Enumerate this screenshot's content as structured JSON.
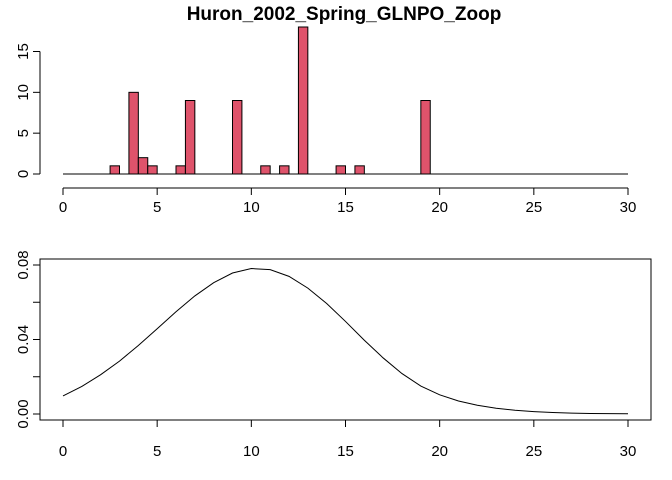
{
  "chart_data": [
    {
      "type": "bar",
      "title": "Huron_2002_Spring_GLNPO_Zoop",
      "xlabel": "",
      "ylabel": "",
      "xlim": [
        0,
        30
      ],
      "ylim": [
        0,
        18
      ],
      "x_ticks": [
        0,
        5,
        10,
        15,
        20,
        25,
        30
      ],
      "y_ticks": [
        0,
        5,
        10,
        15
      ],
      "bar_width": 0.5,
      "bar_color": "#DF536B",
      "x": [
        2.75,
        3.75,
        4.25,
        4.75,
        6.25,
        6.75,
        9.25,
        10.75,
        11.75,
        12.75,
        14.75,
        15.75,
        19.25
      ],
      "values": [
        1,
        10,
        2,
        1,
        1,
        9,
        9,
        1,
        1,
        18,
        1,
        1,
        9
      ],
      "baseline_range": [
        0,
        30
      ]
    },
    {
      "type": "line",
      "title": "",
      "xlabel": "",
      "ylabel": "",
      "xlim": [
        0,
        30
      ],
      "ylim": [
        0,
        0.08
      ],
      "x_ticks": [
        0,
        5,
        10,
        15,
        20,
        25,
        30
      ],
      "y_ticks": [
        0.0,
        0.02,
        0.04,
        0.06,
        0.08
      ],
      "y_tick_labels": [
        "0.00",
        "",
        "0.04",
        "",
        "0.08"
      ],
      "x": [
        0,
        1,
        2,
        3,
        4,
        5,
        6,
        7,
        8,
        9,
        10,
        11,
        12,
        13,
        14,
        15,
        16,
        17,
        18,
        19,
        20,
        21,
        22,
        23,
        24,
        25,
        26,
        27,
        28,
        29,
        30
      ],
      "values": [
        0.0097,
        0.0148,
        0.0211,
        0.0284,
        0.0368,
        0.0458,
        0.0549,
        0.0634,
        0.0705,
        0.0757,
        0.0781,
        0.0775,
        0.0739,
        0.0676,
        0.0593,
        0.0497,
        0.0396,
        0.0301,
        0.0217,
        0.015,
        0.0103,
        0.007,
        0.0047,
        0.0031,
        0.002,
        0.0013,
        0.0008,
        0.0005,
        0.0003,
        0.0002,
        0.0001
      ]
    }
  ]
}
